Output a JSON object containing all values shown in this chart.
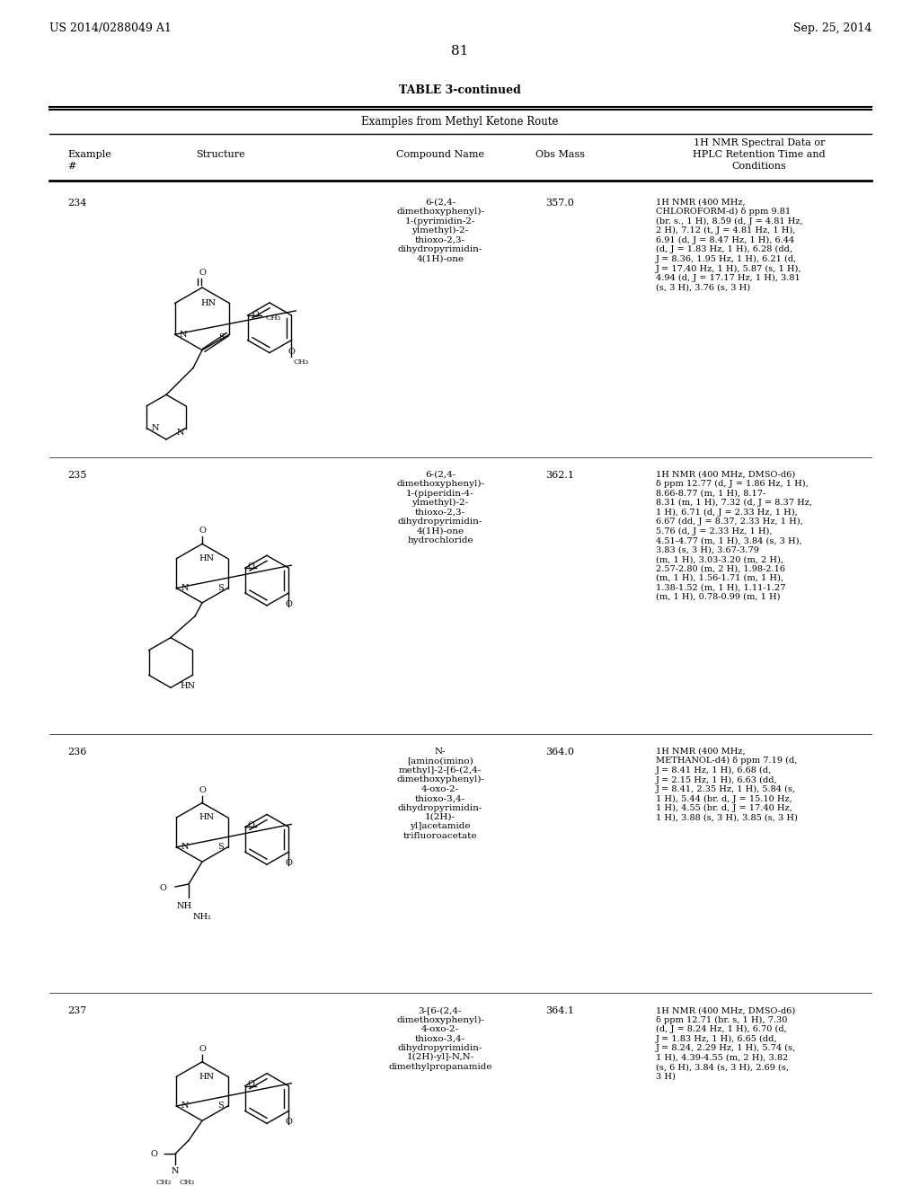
{
  "page_header_left": "US 2014/0288049 A1",
  "page_header_right": "Sep. 25, 2014",
  "page_number": "81",
  "table_title": "TABLE 3-continued",
  "table_subtitle": "Examples from Methyl Ketone Route",
  "col_headers": [
    "Example\n#",
    "Structure",
    "Compound Name",
    "Obs Mass",
    "1H NMR Spectral Data or\nHPLC Retention Time and\nConditions"
  ],
  "background_color": "#ffffff",
  "text_color": "#000000",
  "rows": [
    {
      "example": "234",
      "compound_name": "6-(2,4-\ndimethoxyphenyl)-\n1-(pyrimidin-2-\nylmethyl)-2-\nthioxo-2,3-\ndihydropyrimidin-\n4(1H)-one",
      "obs_mass": "357.0",
      "nmr": "1H NMR (400 MHz,\nCHLOROFORM-d) δ ppm 9.81\n(br. s., 1 H), 8.59 (d, J = 4.81 Hz,\n2 H), 7.12 (t, J = 4.81 Hz, 1 H),\n6.91 (d, J = 8.47 Hz, 1 H), 6.44\n(d, J = 1.83 Hz, 1 H), 6.28 (dd,\nJ = 8.36, 1.95 Hz, 1 H), 6.21 (d,\nJ = 17.40 Hz, 1 H), 5.87 (s, 1 H),\n4.94 (d, J = 17.17 Hz, 1 H), 3.81\n(s, 3 H), 3.76 (s, 3 H)"
    },
    {
      "example": "235",
      "compound_name": "6-(2,4-\ndimethoxyphenyl)-\n1-(piperidin-4-\nylmethyl)-2-\nthioxo-2,3-\ndihydropyrimidin-\n4(1H)-one\nhydrochloride",
      "obs_mass": "362.1",
      "nmr": "1H NMR (400 MHz, DMSO-d6)\nδ ppm 12.77 (d, J = 1.86 Hz, 1 H),\n8.66-8.77 (m, 1 H), 8.17-\n8.31 (m, 1 H), 7.32 (d, J = 8.37 Hz,\n1 H), 6.71 (d, J = 2.33 Hz, 1 H),\n6.67 (dd, J = 8.37, 2.33 Hz, 1 H),\n5.76 (d, J = 2.33 Hz, 1 H),\n4.51-4.77 (m, 1 H), 3.84 (s, 3 H),\n3.83 (s, 3 H), 3.67-3.79\n(m, 1 H), 3.03-3.20 (m, 2 H),\n2.57-2.80 (m, 2 H), 1.98-2.16\n(m, 1 H), 1.56-1.71 (m, 1 H),\n1.38-1.52 (m, 1 H), 1.11-1.27\n(m, 1 H), 0.78-0.99 (m, 1 H)"
    },
    {
      "example": "236",
      "compound_name": "N-\n[amino(imino)\nmethyl]-2-[6-(2,4-\ndimethoxyphenyl)-\n4-oxo-2-\nthioxo-3,4-\ndihydropyrimidin-\n1(2H)-\nyl]acetamide\ntrifluoroacetate",
      "obs_mass": "364.0",
      "nmr": "1H NMR (400 MHz,\nMETHANOL-d4) δ ppm 7.19 (d,\nJ = 8.41 Hz, 1 H), 6.68 (d,\nJ = 2.15 Hz, 1 H), 6.63 (dd,\nJ = 8.41, 2.35 Hz, 1 H), 5.84 (s,\n1 H), 5.44 (br. d, J = 15.10 Hz,\n1 H), 4.55 (br. d, J = 17.40 Hz,\n1 H), 3.88 (s, 3 H), 3.85 (s, 3 H)"
    },
    {
      "example": "237",
      "compound_name": "3-[6-(2,4-\ndimethoxyphenyl)-\n4-oxo-2-\nthioxo-3,4-\ndihydropyrimidin-\n1(2H)-yl]-N,N-\ndimethylpropanamide",
      "obs_mass": "364.1",
      "nmr": "1H NMR (400 MHz, DMSO-d6)\nδ ppm 12.71 (br. s, 1 H), 7.30\n(d, J = 8.24 Hz, 1 H), 6.70 (d,\nJ = 1.83 Hz, 1 H), 6.65 (dd,\nJ = 8.24, 2.29 Hz, 1 H), 5.74 (s,\n1 H), 4.39-4.55 (m, 2 H), 3.82\n(s, 6 H), 3.84 (s, 3 H), 2.69 (s,\n3 H)"
    }
  ]
}
